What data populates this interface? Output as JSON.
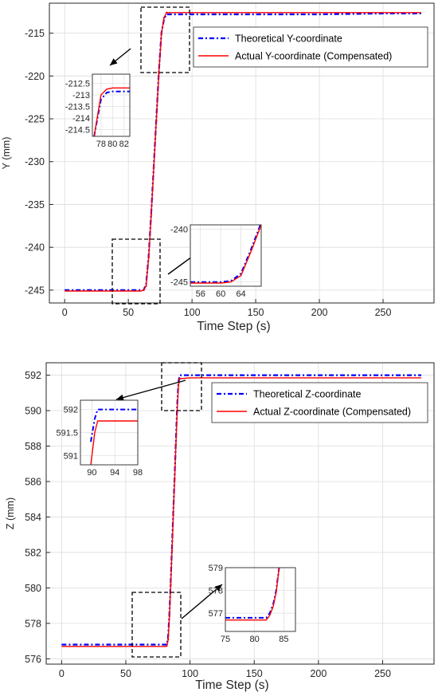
{
  "colors": {
    "theoretical": "#0000ff",
    "actual": "#ff0000",
    "grid": "#dcdcdc",
    "axis": "#262626"
  },
  "chart_data": [
    {
      "type": "line",
      "xlabel": "Time Step (s)",
      "ylabel": "Y (mm)",
      "xlim": [
        -12,
        290
      ],
      "ylim": [
        -246.5,
        -211.5
      ],
      "xticks": [
        0,
        50,
        100,
        150,
        200,
        250
      ],
      "yticks": [
        -215,
        -220,
        -225,
        -230,
        -235,
        -240,
        -245
      ],
      "legend_position": "top-right",
      "grid": true,
      "series": [
        {
          "name": "Theoretical Y-coordinate",
          "style": "dash-dot",
          "x": [
            0,
            60,
            62,
            64,
            66,
            68,
            70,
            72,
            74,
            76,
            78,
            80,
            100,
            150,
            200,
            250,
            280
          ],
          "y": [
            -245,
            -245,
            -245,
            -244.3,
            -241,
            -236,
            -230.5,
            -225,
            -219.5,
            -215,
            -213.4,
            -212.8,
            -212.8,
            -212.8,
            -212.8,
            -212.7,
            -212.7
          ]
        },
        {
          "name": "Actual Y-coordinate (Compensated)",
          "style": "solid",
          "x": [
            0,
            60,
            62,
            64,
            66,
            68,
            70,
            72,
            74,
            76,
            78,
            80,
            100,
            150,
            200,
            250,
            280
          ],
          "y": [
            -245.1,
            -245.1,
            -245,
            -244.5,
            -241.2,
            -236.2,
            -230.7,
            -225.2,
            -219.7,
            -215.1,
            -213.2,
            -212.6,
            -212.6,
            -212.6,
            -212.6,
            -212.6,
            -212.6
          ]
        }
      ],
      "insets": [
        {
          "xlim": [
            76.5,
            83
          ],
          "ylim": [
            -214.8,
            -212.1
          ],
          "xticks": [
            78,
            80,
            82
          ],
          "yticks": [
            -212.5,
            -213,
            -213.5,
            -214,
            -214.5
          ],
          "ytick_labels": [
            "-212.5",
            "-213",
            "-213.5",
            "-214",
            "-214.5"
          ],
          "series_x": [
            [
              76.8,
              78,
              79,
              80,
              83
            ],
            [
              76.8,
              78,
              79,
              80,
              83
            ]
          ],
          "series_y": [
            [
              -214.8,
              -213.2,
              -212.9,
              -212.85,
              -212.85
            ],
            [
              -214.8,
              -213.0,
              -212.75,
              -212.7,
              -212.7
            ]
          ]
        },
        {
          "xlim": [
            54,
            68
          ],
          "ylim": [
            -245.4,
            -239.6
          ],
          "xticks": [
            56,
            60,
            64
          ],
          "yticks": [
            -240,
            -245
          ],
          "ytick_labels": [
            "-240",
            "-245"
          ],
          "series_x": [
            [
              54,
              60,
              62,
              64,
              66,
              68
            ],
            [
              54,
              60,
              62,
              64,
              66,
              68
            ]
          ],
          "series_y": [
            [
              -245,
              -245,
              -244.9,
              -244.2,
              -241.9,
              -239.4
            ],
            [
              -245.1,
              -245.1,
              -245.0,
              -244.4,
              -242.1,
              -239.6
            ]
          ]
        }
      ]
    },
    {
      "type": "line",
      "xlabel": "Time Step (s)",
      "ylabel": "Z (mm)",
      "xlim": [
        -12,
        290
      ],
      "ylim": [
        575.7,
        592.7
      ],
      "xticks": [
        0,
        50,
        100,
        150,
        200,
        250
      ],
      "yticks": [
        576,
        578,
        580,
        582,
        584,
        586,
        588,
        590,
        592
      ],
      "legend_position": "top-right",
      "grid": true,
      "series": [
        {
          "name": "Theoretical Z-coordinate",
          "style": "dash-dot",
          "x": [
            0,
            82,
            83,
            84,
            85,
            86,
            87,
            88,
            89,
            90,
            91,
            92,
            100,
            150,
            200,
            250,
            280
          ],
          "y": [
            576.8,
            576.8,
            577.3,
            578.6,
            580.4,
            582.3,
            584.3,
            586.3,
            588.3,
            590.3,
            591.6,
            592.0,
            592.0,
            592.0,
            592.0,
            592.0,
            592.0
          ]
        },
        {
          "name": "Actual Z-coordinate (Compensated)",
          "style": "solid",
          "x": [
            0,
            82,
            83,
            84,
            85,
            86,
            87,
            88,
            89,
            90,
            91,
            92,
            100,
            150,
            200,
            250,
            280
          ],
          "y": [
            576.7,
            576.7,
            577.1,
            578.4,
            580.2,
            582.1,
            584.1,
            586.1,
            588.1,
            590.0,
            591.4,
            591.8,
            591.85,
            591.85,
            591.85,
            591.85,
            591.85
          ]
        }
      ],
      "insets": [
        {
          "xlim": [
            88,
            98
          ],
          "ylim": [
            590.8,
            592.2
          ],
          "xticks": [
            90,
            94,
            98
          ],
          "yticks": [
            592,
            591.5,
            591
          ],
          "ytick_labels": [
            "592",
            "591.5",
            "591"
          ],
          "series_x": [
            [
              89.8,
              90.5,
              91,
              98
            ],
            [
              89.8,
              90.5,
              91,
              98
            ]
          ],
          "series_y": [
            [
              591.3,
              591.8,
              592.0,
              592.0
            ],
            [
              590.8,
              591.5,
              591.75,
              591.75
            ]
          ]
        },
        {
          "xlim": [
            75,
            87
          ],
          "ylim": [
            576.2,
            579.0
          ],
          "xticks": [
            75,
            80,
            85
          ],
          "yticks": [
            577,
            578,
            579
          ],
          "ytick_labels": [
            "577",
            "578",
            "579"
          ],
          "series_x": [
            [
              75,
              82,
              82.6,
              83.2,
              83.7,
              84.2
            ],
            [
              75,
              82,
              82.6,
              83.2,
              83.7,
              84.2
            ]
          ],
          "series_y": [
            [
              576.8,
              576.8,
              577.0,
              577.4,
              578.0,
              579.0
            ],
            [
              576.7,
              576.7,
              576.9,
              577.3,
              577.9,
              579.0
            ]
          ]
        }
      ]
    }
  ]
}
